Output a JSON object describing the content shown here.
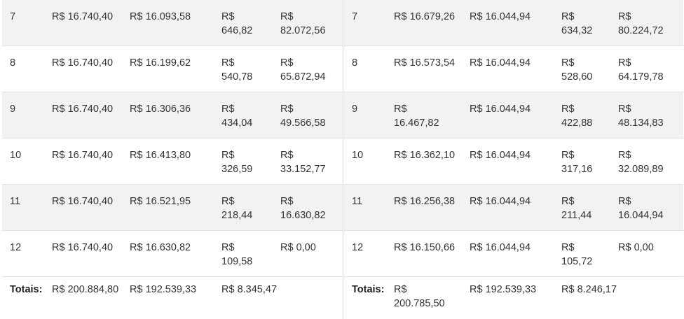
{
  "left_table": {
    "rows": [
      {
        "n": "7",
        "parcela": "R$ 16.740,40",
        "amortizacao": "R$ 16.093,58",
        "juros": "R$ 646,82",
        "saldo": "R$ 82.072,56"
      },
      {
        "n": "8",
        "parcela": "R$ 16.740,40",
        "amortizacao": "R$ 16.199,62",
        "juros": "R$ 540,78",
        "saldo": "R$ 65.872,94"
      },
      {
        "n": "9",
        "parcela": "R$ 16.740,40",
        "amortizacao": "R$ 16.306,36",
        "juros": "R$ 434,04",
        "saldo": "R$ 49.566,58"
      },
      {
        "n": "10",
        "parcela": "R$ 16.740,40",
        "amortizacao": "R$ 16.413,80",
        "juros": "R$ 326,59",
        "saldo": "R$ 33.152,77"
      },
      {
        "n": "11",
        "parcela": "R$ 16.740,40",
        "amortizacao": "R$ 16.521,95",
        "juros": "R$ 218,44",
        "saldo": "R$ 16.630,82"
      },
      {
        "n": "12",
        "parcela": "R$ 16.740,40",
        "amortizacao": "R$ 16.630,82",
        "juros": "R$ 109,58",
        "saldo": "R$ 0,00"
      }
    ],
    "totals": {
      "label": "Totais:",
      "parcela": "R$ 200.884,80",
      "amortizacao": "R$ 192.539,33",
      "juros": "R$ 8.345,47"
    }
  },
  "right_table": {
    "rows": [
      {
        "n": "7",
        "parcela": "R$ 16.679,26",
        "amortizacao": "R$ 16.044,94",
        "juros": "R$ 634,32",
        "saldo": "R$ 80.224,72"
      },
      {
        "n": "8",
        "parcela": "R$ 16.573,54",
        "amortizacao": "R$ 16.044,94",
        "juros": "R$ 528,60",
        "saldo": "R$ 64.179,78"
      },
      {
        "n": "9",
        "parcela": "R$ 16.467,82",
        "amortizacao": "R$ 16.044,94",
        "juros": "R$ 422,88",
        "saldo": "R$ 48.134,83"
      },
      {
        "n": "10",
        "parcela": "R$ 16.362,10",
        "amortizacao": "R$ 16.044,94",
        "juros": "R$ 317,16",
        "saldo": "R$ 32.089,89"
      },
      {
        "n": "11",
        "parcela": "R$ 16.256,38",
        "amortizacao": "R$ 16.044,94",
        "juros": "R$ 211,44",
        "saldo": "R$ 16.044,94"
      },
      {
        "n": "12",
        "parcela": "R$ 16.150,66",
        "amortizacao": "R$ 16.044,94",
        "juros": "R$ 105,72",
        "saldo": "R$ 0,00"
      }
    ],
    "totals": {
      "label": "Totais:",
      "parcela": "R$ 200.785,50",
      "amortizacao": "R$ 192.539,33",
      "juros": "R$ 8.246,17"
    }
  },
  "colors": {
    "row_shade": "#f2f2f2",
    "text": "#333333",
    "divider": "#d9d9d9"
  }
}
